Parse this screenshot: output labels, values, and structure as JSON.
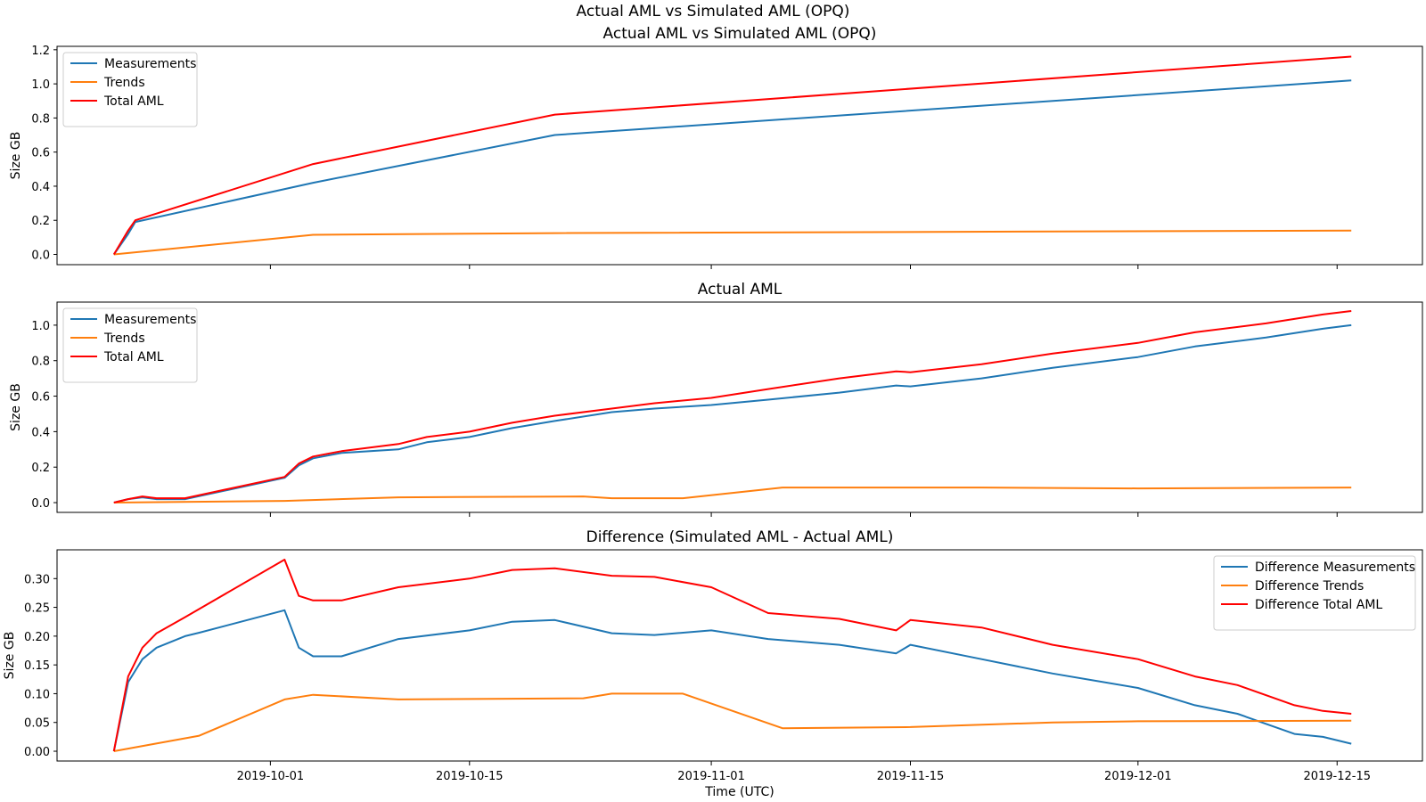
{
  "suptitle": "Actual AML vs Simulated AML (OPQ)",
  "xlabel": "Time (UTC)",
  "x_ticks": [
    "2019-10-01",
    "2019-10-15",
    "2019-11-01",
    "2019-11-15",
    "2019-12-01",
    "2019-12-15"
  ],
  "colors": {
    "blue": "#1f77b4",
    "orange": "#ff7f0e",
    "red": "#ff0000"
  },
  "chart_data": [
    {
      "type": "line",
      "title": "Actual AML vs Simulated AML (OPQ)",
      "ylabel": "Size GB",
      "xlim": [
        "2019-09-16",
        "2019-12-21"
      ],
      "ylim": [
        -0.06,
        1.22
      ],
      "yticks": [
        "0.0",
        "0.2",
        "0.4",
        "0.6",
        "0.8",
        "1.0",
        "1.2"
      ],
      "legend": "top-left",
      "grid": false,
      "series": [
        {
          "name": "Measurements",
          "color": "#1f77b4",
          "points": [
            [
              "2019-09-20",
              0.0
            ],
            [
              "2019-09-21",
              0.12
            ],
            [
              "2019-09-21T12:00",
              0.19
            ],
            [
              "2019-10-04",
              0.42
            ],
            [
              "2019-10-21",
              0.7
            ],
            [
              "2019-12-16",
              1.02
            ]
          ]
        },
        {
          "name": "Trends",
          "color": "#ff7f0e",
          "points": [
            [
              "2019-09-20",
              0.0
            ],
            [
              "2019-10-04",
              0.115
            ],
            [
              "2019-10-21",
              0.125
            ],
            [
              "2019-12-16",
              0.14
            ]
          ]
        },
        {
          "name": "Total AML",
          "color": "#ff0000",
          "points": [
            [
              "2019-09-20",
              0.0
            ],
            [
              "2019-09-21",
              0.14
            ],
            [
              "2019-09-21T12:00",
              0.2
            ],
            [
              "2019-10-04",
              0.53
            ],
            [
              "2019-10-21",
              0.82
            ],
            [
              "2019-12-16",
              1.16
            ]
          ]
        }
      ]
    },
    {
      "type": "line",
      "title": "Actual AML",
      "ylabel": "Size GB",
      "xlim": [
        "2019-09-16",
        "2019-12-21"
      ],
      "ylim": [
        -0.055,
        1.13
      ],
      "yticks": [
        "0.0",
        "0.2",
        "0.4",
        "0.6",
        "0.8",
        "1.0"
      ],
      "legend": "top-left",
      "grid": false,
      "series": [
        {
          "name": "Measurements",
          "color": "#1f77b4",
          "points": [
            [
              "2019-09-20",
              0.0
            ],
            [
              "2019-09-21",
              0.02
            ],
            [
              "2019-09-22",
              0.03
            ],
            [
              "2019-09-23",
              0.02
            ],
            [
              "2019-09-25",
              0.02
            ],
            [
              "2019-10-02",
              0.14
            ],
            [
              "2019-10-03",
              0.21
            ],
            [
              "2019-10-04",
              0.25
            ],
            [
              "2019-10-06",
              0.28
            ],
            [
              "2019-10-10",
              0.3
            ],
            [
              "2019-10-12",
              0.34
            ],
            [
              "2019-10-15",
              0.37
            ],
            [
              "2019-10-18",
              0.42
            ],
            [
              "2019-10-21",
              0.46
            ],
            [
              "2019-10-25",
              0.51
            ],
            [
              "2019-10-28",
              0.53
            ],
            [
              "2019-11-01",
              0.55
            ],
            [
              "2019-11-05",
              0.58
            ],
            [
              "2019-11-10",
              0.62
            ],
            [
              "2019-11-14",
              0.66
            ],
            [
              "2019-11-15",
              0.655
            ],
            [
              "2019-11-20",
              0.7
            ],
            [
              "2019-11-25",
              0.76
            ],
            [
              "2019-12-01",
              0.82
            ],
            [
              "2019-12-05",
              0.88
            ],
            [
              "2019-12-10",
              0.93
            ],
            [
              "2019-12-14",
              0.98
            ],
            [
              "2019-12-16",
              1.0
            ]
          ]
        },
        {
          "name": "Trends",
          "color": "#ff7f0e",
          "points": [
            [
              "2019-09-20",
              0.0
            ],
            [
              "2019-10-02",
              0.01
            ],
            [
              "2019-10-10",
              0.03
            ],
            [
              "2019-10-23",
              0.035
            ],
            [
              "2019-10-25",
              0.025
            ],
            [
              "2019-10-30",
              0.025
            ],
            [
              "2019-11-06",
              0.085
            ],
            [
              "2019-11-20",
              0.085
            ],
            [
              "2019-12-01",
              0.08
            ],
            [
              "2019-12-16",
              0.085
            ]
          ]
        },
        {
          "name": "Total AML",
          "color": "#ff0000",
          "points": [
            [
              "2019-09-20",
              0.0
            ],
            [
              "2019-09-21",
              0.02
            ],
            [
              "2019-09-22",
              0.035
            ],
            [
              "2019-09-23",
              0.025
            ],
            [
              "2019-09-25",
              0.025
            ],
            [
              "2019-10-02",
              0.145
            ],
            [
              "2019-10-03",
              0.22
            ],
            [
              "2019-10-04",
              0.26
            ],
            [
              "2019-10-06",
              0.29
            ],
            [
              "2019-10-10",
              0.33
            ],
            [
              "2019-10-12",
              0.37
            ],
            [
              "2019-10-15",
              0.4
            ],
            [
              "2019-10-18",
              0.45
            ],
            [
              "2019-10-21",
              0.49
            ],
            [
              "2019-10-25",
              0.53
            ],
            [
              "2019-10-28",
              0.56
            ],
            [
              "2019-11-01",
              0.59
            ],
            [
              "2019-11-05",
              0.64
            ],
            [
              "2019-11-10",
              0.7
            ],
            [
              "2019-11-14",
              0.74
            ],
            [
              "2019-11-15",
              0.735
            ],
            [
              "2019-11-20",
              0.78
            ],
            [
              "2019-11-25",
              0.84
            ],
            [
              "2019-12-01",
              0.9
            ],
            [
              "2019-12-05",
              0.96
            ],
            [
              "2019-12-10",
              1.01
            ],
            [
              "2019-12-14",
              1.06
            ],
            [
              "2019-12-16",
              1.08
            ]
          ]
        }
      ]
    },
    {
      "type": "line",
      "title": "Difference (Simulated AML - Actual AML)",
      "ylabel": "Size GB",
      "xlim": [
        "2019-09-16",
        "2019-12-21"
      ],
      "ylim": [
        -0.017,
        0.35
      ],
      "yticks": [
        "0.00",
        "0.05",
        "0.10",
        "0.15",
        "0.20",
        "0.25",
        "0.30"
      ],
      "legend": "top-right",
      "grid": false,
      "series": [
        {
          "name": "Difference Measurements",
          "color": "#1f77b4",
          "points": [
            [
              "2019-09-20",
              0.0
            ],
            [
              "2019-09-21",
              0.12
            ],
            [
              "2019-09-22",
              0.16
            ],
            [
              "2019-09-23",
              0.18
            ],
            [
              "2019-09-25",
              0.2
            ],
            [
              "2019-09-26",
              0.206
            ],
            [
              "2019-10-02",
              0.245
            ],
            [
              "2019-10-03",
              0.18
            ],
            [
              "2019-10-04",
              0.165
            ],
            [
              "2019-10-06",
              0.165
            ],
            [
              "2019-10-10",
              0.195
            ],
            [
              "2019-10-15",
              0.21
            ],
            [
              "2019-10-18",
              0.225
            ],
            [
              "2019-10-21",
              0.228
            ],
            [
              "2019-10-25",
              0.205
            ],
            [
              "2019-10-28",
              0.202
            ],
            [
              "2019-11-01",
              0.21
            ],
            [
              "2019-11-05",
              0.195
            ],
            [
              "2019-11-10",
              0.185
            ],
            [
              "2019-11-14",
              0.17
            ],
            [
              "2019-11-15",
              0.185
            ],
            [
              "2019-11-20",
              0.16
            ],
            [
              "2019-11-25",
              0.135
            ],
            [
              "2019-12-01",
              0.11
            ],
            [
              "2019-12-05",
              0.08
            ],
            [
              "2019-12-08",
              0.065
            ],
            [
              "2019-12-12",
              0.03
            ],
            [
              "2019-12-14",
              0.025
            ],
            [
              "2019-12-16",
              0.013
            ]
          ]
        },
        {
          "name": "Difference Trends",
          "color": "#ff7f0e",
          "points": [
            [
              "2019-09-20",
              0.0
            ],
            [
              "2019-09-26",
              0.027
            ],
            [
              "2019-10-02",
              0.09
            ],
            [
              "2019-10-04",
              0.098
            ],
            [
              "2019-10-10",
              0.09
            ],
            [
              "2019-10-23",
              0.092
            ],
            [
              "2019-10-25",
              0.1
            ],
            [
              "2019-10-30",
              0.1
            ],
            [
              "2019-11-06",
              0.04
            ],
            [
              "2019-11-15",
              0.042
            ],
            [
              "2019-11-25",
              0.05
            ],
            [
              "2019-12-01",
              0.052
            ],
            [
              "2019-12-16",
              0.053
            ]
          ]
        },
        {
          "name": "Difference Total AML",
          "color": "#ff0000",
          "points": [
            [
              "2019-09-20",
              0.0
            ],
            [
              "2019-09-21",
              0.13
            ],
            [
              "2019-09-22",
              0.18
            ],
            [
              "2019-09-23",
              0.205
            ],
            [
              "2019-09-25",
              0.233
            ],
            [
              "2019-10-02",
              0.333
            ],
            [
              "2019-10-03",
              0.27
            ],
            [
              "2019-10-04",
              0.262
            ],
            [
              "2019-10-06",
              0.262
            ],
            [
              "2019-10-10",
              0.285
            ],
            [
              "2019-10-15",
              0.3
            ],
            [
              "2019-10-18",
              0.315
            ],
            [
              "2019-10-21",
              0.318
            ],
            [
              "2019-10-25",
              0.305
            ],
            [
              "2019-10-28",
              0.303
            ],
            [
              "2019-11-01",
              0.285
            ],
            [
              "2019-11-05",
              0.24
            ],
            [
              "2019-11-10",
              0.23
            ],
            [
              "2019-11-14",
              0.21
            ],
            [
              "2019-11-15",
              0.228
            ],
            [
              "2019-11-20",
              0.215
            ],
            [
              "2019-11-25",
              0.185
            ],
            [
              "2019-12-01",
              0.16
            ],
            [
              "2019-12-05",
              0.13
            ],
            [
              "2019-12-08",
              0.115
            ],
            [
              "2019-12-12",
              0.08
            ],
            [
              "2019-12-14",
              0.07
            ],
            [
              "2019-12-16",
              0.065
            ]
          ]
        }
      ]
    }
  ]
}
